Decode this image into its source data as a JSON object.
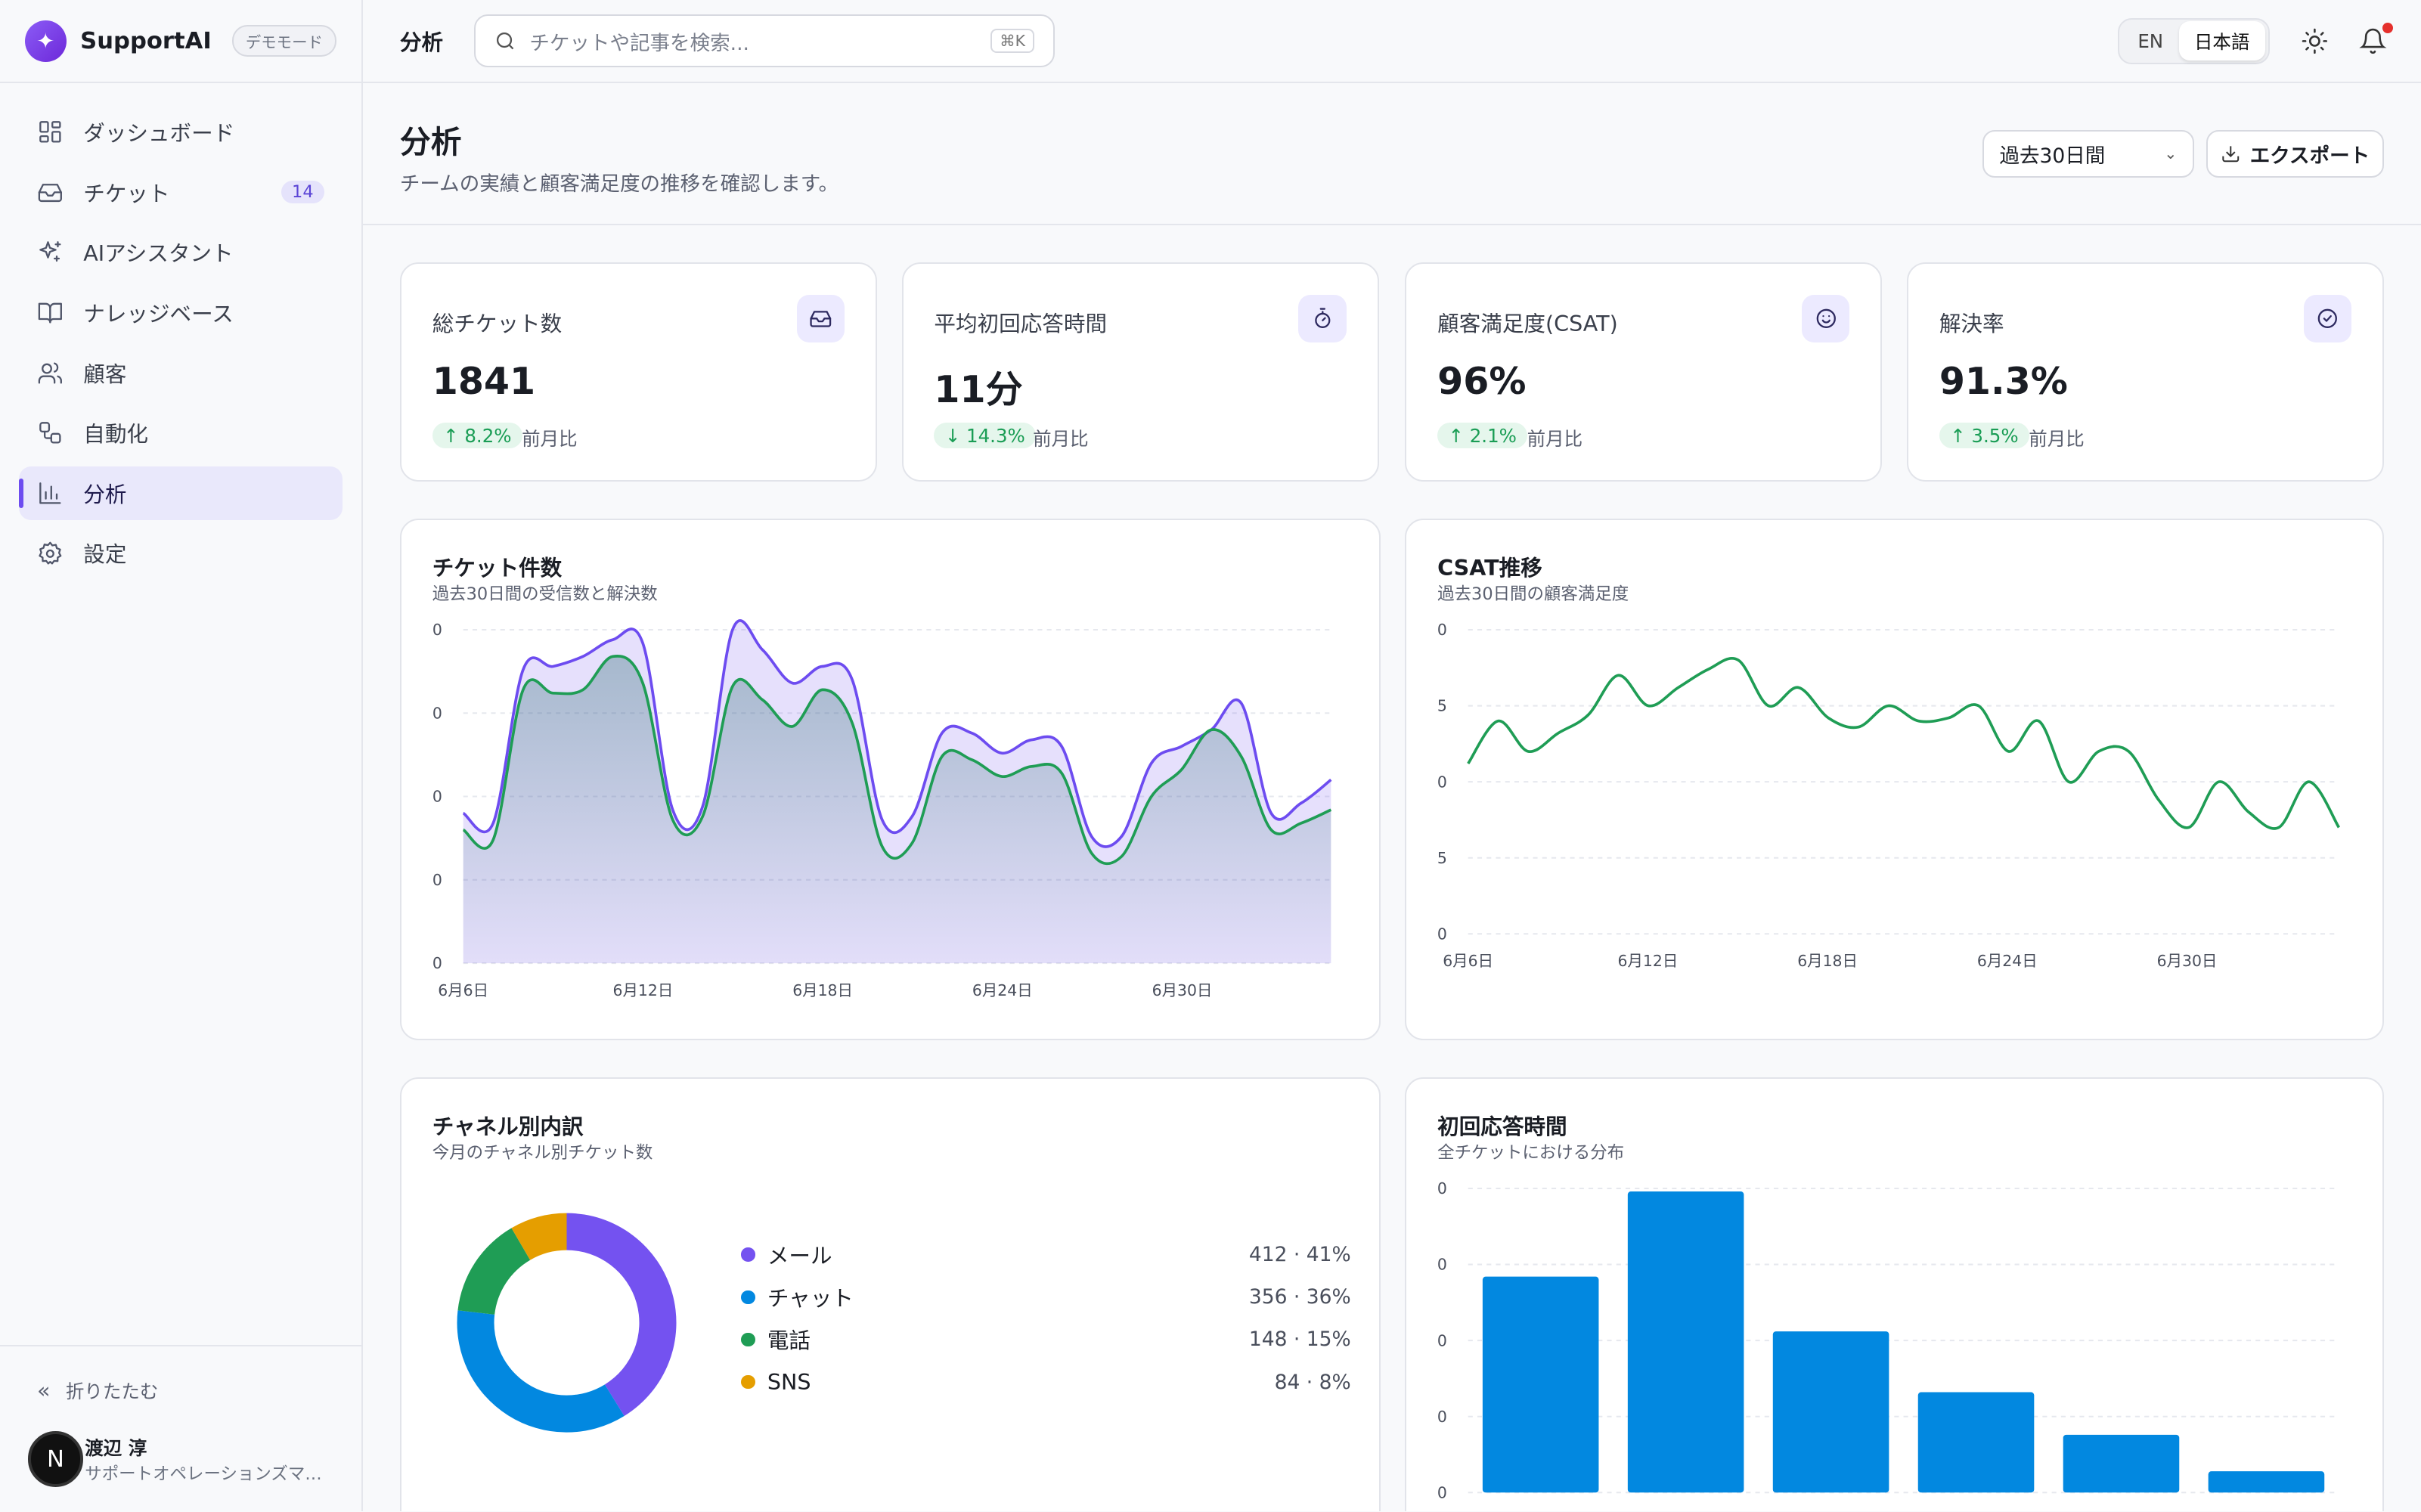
{
  "app": {
    "name": "SupportAI",
    "mode_badge": "デモモード"
  },
  "sidebar": {
    "items": [
      {
        "label": "ダッシュボード",
        "icon": "dashboard-icon"
      },
      {
        "label": "チケット",
        "icon": "inbox-icon",
        "badge": "14"
      },
      {
        "label": "AIアシスタント",
        "icon": "sparkles-icon"
      },
      {
        "label": "ナレッジベース",
        "icon": "book-icon"
      },
      {
        "label": "顧客",
        "icon": "users-icon"
      },
      {
        "label": "自動化",
        "icon": "workflow-icon"
      },
      {
        "label": "分析",
        "icon": "bar-chart-icon",
        "active": true
      },
      {
        "label": "設定",
        "icon": "gear-icon"
      }
    ],
    "collapse_label": "折りたたむ",
    "user": {
      "initial": "N",
      "name": "渡辺 淳",
      "role": "サポートオペレーションズマネージャー"
    }
  },
  "topbar": {
    "breadcrumb": "分析",
    "search_placeholder": "チケットや記事を検索...",
    "search_shortcut": "⌘K",
    "lang_en": "EN",
    "lang_ja": "日本語",
    "notification_dot_color": "#e5302c"
  },
  "header": {
    "title": "分析",
    "subtitle": "チームの実績と顧客満足度の推移を確認します。",
    "range": "過去30日間",
    "export": "エクスポート"
  },
  "kpis": [
    {
      "label": "総チケット数",
      "value": "1841",
      "delta": "↑ 8.2%",
      "compare": "前月比",
      "icon": "inbox-icon"
    },
    {
      "label": "平均初回応答時間",
      "value": "11分",
      "delta": "↓ 14.3%",
      "compare": "前月比",
      "icon": "stopwatch-icon"
    },
    {
      "label": "顧客満足度(CSAT)",
      "value": "96%",
      "delta": "↑ 2.1%",
      "compare": "前月比",
      "icon": "smile-icon"
    },
    {
      "label": "解決率",
      "value": "91.3%",
      "delta": "↑ 3.5%",
      "compare": "前月比",
      "icon": "check-circle-icon"
    }
  ],
  "colors": {
    "accent": "#6d4cf0",
    "green": "#1f9d55",
    "blue": "#0288e0",
    "amber": "#e59e00",
    "purple": "#7452f0"
  },
  "chart_data": [
    {
      "type": "area",
      "title": "チケット件数",
      "subtitle": "過去30日間の受信数と解決数",
      "y_tick_labels": [
        "0",
        "0",
        "0",
        "0",
        "0"
      ],
      "x_tick_labels": [
        "6月6日",
        "6月12日",
        "6月18日",
        "6月24日",
        "6月30日"
      ],
      "ylim": [
        0,
        100
      ],
      "x": [
        0,
        1,
        2,
        3,
        4,
        5,
        6,
        7,
        8,
        9,
        10,
        11,
        12,
        13,
        14,
        15,
        16,
        17,
        18,
        19,
        20,
        21,
        22,
        23,
        24,
        25,
        26,
        27,
        28,
        29
      ],
      "series": [
        {
          "values": [
            45,
            42,
            88,
            89,
            92,
            97,
            96,
            46,
            47,
            100,
            94,
            84,
            89,
            85,
            43,
            44,
            69,
            69,
            63,
            67,
            65,
            38,
            38,
            60,
            65,
            70,
            78,
            45,
            48,
            55
          ]
        },
        {
          "values": [
            40,
            37,
            82,
            81,
            82,
            92,
            84,
            43,
            44,
            83,
            79,
            71,
            82,
            72,
            35,
            36,
            62,
            61,
            56,
            59,
            57,
            33,
            32,
            50,
            58,
            70,
            62,
            40,
            42,
            46
          ]
        }
      ]
    },
    {
      "type": "line",
      "title": "CSAT推移",
      "subtitle": "過去30日間の顧客満足度",
      "y_tick_labels": [
        "0",
        "5",
        "0",
        "5",
        "0"
      ],
      "x_tick_labels": [
        "6月6日",
        "6月12日",
        "6月18日",
        "6月24日",
        "6月30日"
      ],
      "ylim": [
        0,
        100
      ],
      "x": [
        0,
        1,
        2,
        3,
        4,
        5,
        6,
        7,
        8,
        9,
        10,
        11,
        12,
        13,
        14,
        15,
        16,
        17,
        18,
        19,
        20,
        21,
        22,
        23,
        24,
        25,
        26,
        27,
        28,
        29
      ],
      "series": [
        {
          "values": [
            56,
            70,
            60,
            66,
            72,
            85,
            75,
            81,
            87,
            90,
            75,
            81,
            71,
            68,
            75,
            70,
            71,
            75,
            60,
            70,
            50,
            60,
            60,
            44,
            35,
            50,
            40,
            35,
            50,
            35
          ]
        }
      ]
    },
    {
      "type": "pie",
      "title": "チャネル別内訳",
      "subtitle": "今月のチャネル別チケット数",
      "slices": [
        {
          "label": "メール",
          "value": 412,
          "percent": 41,
          "color": "#7452f0",
          "display": "412 · 41%"
        },
        {
          "label": "チャット",
          "value": 356,
          "percent": 36,
          "color": "#0288e0",
          "display": "356 · 36%"
        },
        {
          "label": "電話",
          "value": 148,
          "percent": 15,
          "color": "#1f9d55",
          "display": "148 · 15%"
        },
        {
          "label": "SNS",
          "value": 84,
          "percent": 8,
          "color": "#e59e00",
          "display": "84 · 8%"
        }
      ]
    },
    {
      "type": "bar",
      "title": "初回応答時間",
      "subtitle": "全チケットにおける分布",
      "y_tick_labels": [
        "0",
        "0",
        "0",
        "0",
        "0"
      ],
      "ylim": [
        0,
        100
      ],
      "values": [
        71,
        99,
        53,
        33,
        19,
        7
      ],
      "color": "#0288e0"
    }
  ]
}
